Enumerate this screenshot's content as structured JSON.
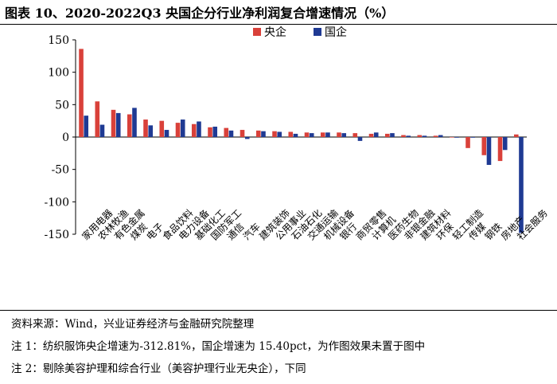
{
  "title": "图表 10、2020-2022Q3 央国企分行业净利润复合增速情况（%）",
  "notes": {
    "source": "资料来源：Wind，兴业证券经济与金融研究院整理",
    "note1": "注 1：纺织服饰央企增速为-312.81%，国企增速为 15.40pct，为作图效果未置于图中",
    "note2": "注 2：剔除美容护理和综合行业（美容护理行业无央企），下同"
  },
  "colors": {
    "central": "#d9413a",
    "state": "#1f3a93"
  },
  "chart_data": {
    "type": "bar",
    "title": "图表 10、2020-2022Q3 央国企分行业净利润复合增速情况（%）",
    "xlabel": "",
    "ylabel": "",
    "ylim": [
      -150,
      150
    ],
    "yticks": [
      150,
      100,
      50,
      0,
      -50,
      -100,
      -150
    ],
    "legend": "top-center",
    "grid": false,
    "categories": [
      "家用电器",
      "农林牧渔",
      "有色金属",
      "煤炭",
      "电子",
      "食品饮料",
      "电力设备",
      "基础化工",
      "国防军工",
      "通信",
      "汽车",
      "建筑装饰",
      "公用事业",
      "石油石化",
      "交通运输",
      "机械设备",
      "银行",
      "商贸零售",
      "计算机",
      "医药生物",
      "非银金融",
      "建筑材料",
      "环保",
      "轻工制造",
      "传媒",
      "钢铁",
      "房地产",
      "社会服务"
    ],
    "series": [
      {
        "name": "央企",
        "values": [
          136,
          55,
          42,
          35,
          27,
          25,
          22,
          20,
          15,
          14,
          11,
          10,
          9,
          8,
          7,
          7,
          7,
          6,
          5,
          5,
          3,
          3,
          2,
          0,
          -17,
          -28,
          -37,
          4
        ]
      },
      {
        "name": "国企",
        "values": [
          33,
          19,
          37,
          45,
          18,
          11,
          27,
          24,
          16,
          10,
          -3,
          9,
          8,
          5,
          6,
          7,
          6,
          -6,
          7,
          6,
          2,
          2,
          3,
          -1,
          -1,
          -43,
          -20,
          -148
        ]
      }
    ]
  }
}
